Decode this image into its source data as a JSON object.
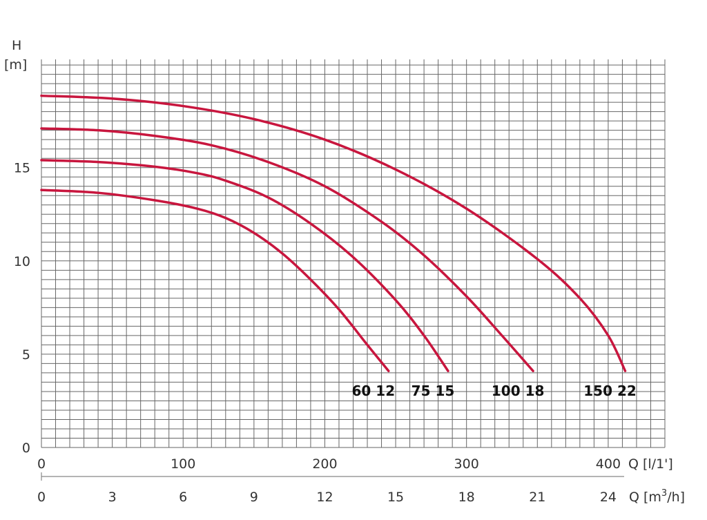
{
  "chart_data": {
    "type": "line",
    "y_axis": {
      "label_line1": "H",
      "label_line2": "[m]",
      "ticks": [
        0,
        5,
        10,
        15
      ],
      "tick_labels": [
        "0",
        "5",
        "10",
        "15"
      ],
      "range": [
        0,
        20.8
      ],
      "minor_step": 0.5
    },
    "x_axis_primary": {
      "unit_label": "Q [l/1']",
      "ticks": [
        0,
        100,
        200,
        300,
        400
      ],
      "tick_labels": [
        "0",
        "100",
        "200",
        "300",
        "400"
      ],
      "range": [
        0,
        440
      ],
      "minor_step": 10
    },
    "x_axis_secondary": {
      "unit_label_prefix": "Q [m",
      "unit_label_sup": "3",
      "unit_label_suffix": "/h]",
      "ticks": [
        0,
        3,
        6,
        9,
        12,
        15,
        18,
        21,
        24
      ],
      "tick_labels": [
        "0",
        "3",
        "6",
        "9",
        "12",
        "15",
        "18",
        "21",
        "24"
      ]
    },
    "grid": true,
    "series": [
      {
        "name": "60 12",
        "x": [
          0,
          40,
          80,
          110,
          130,
          150,
          170,
          190,
          210,
          230,
          245
        ],
        "y": [
          13.8,
          13.65,
          13.25,
          12.8,
          12.3,
          11.5,
          10.4,
          9.0,
          7.4,
          5.5,
          4.1
        ]
      },
      {
        "name": "75 15",
        "x": [
          0,
          40,
          80,
          110,
          130,
          160,
          190,
          220,
          250,
          270,
          287
        ],
        "y": [
          15.4,
          15.3,
          15.05,
          14.7,
          14.3,
          13.4,
          12.0,
          10.2,
          7.9,
          6.0,
          4.1
        ]
      },
      {
        "name": "100 18",
        "x": [
          0,
          40,
          80,
          120,
          160,
          200,
          240,
          270,
          300,
          325,
          347
        ],
        "y": [
          17.1,
          17.0,
          16.7,
          16.2,
          15.3,
          14.0,
          12.1,
          10.3,
          8.1,
          6.0,
          4.1
        ]
      },
      {
        "name": "150 22",
        "x": [
          0,
          50,
          100,
          150,
          200,
          250,
          300,
          350,
          380,
          400,
          412
        ],
        "y": [
          18.85,
          18.7,
          18.3,
          17.6,
          16.5,
          14.9,
          12.8,
          10.1,
          8.0,
          6.0,
          4.1
        ]
      }
    ]
  }
}
